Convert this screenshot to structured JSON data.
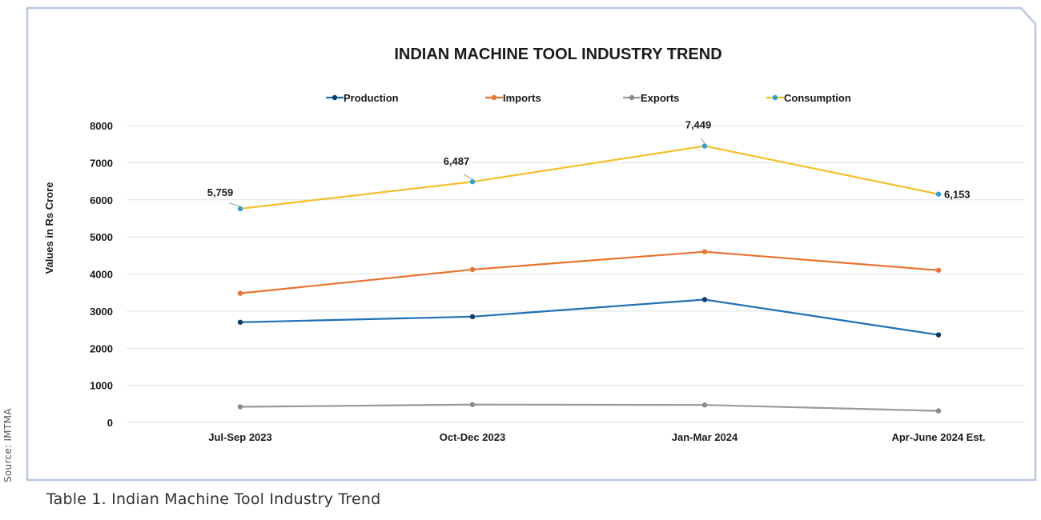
{
  "source_label": "Source: IMTMA",
  "caption": "Table 1. Indian Machine Tool Industry Trend",
  "chart_data": {
    "type": "line",
    "title": "INDIAN MACHINE TOOL INDUSTRY TREND",
    "ylabel": "Values in Rs Crore",
    "xlabel": "",
    "ylim": [
      0,
      8000
    ],
    "yticks": [
      0,
      1000,
      2000,
      3000,
      4000,
      5000,
      6000,
      7000,
      8000
    ],
    "grid": true,
    "legend_position": "top",
    "categories": [
      "Jul-Sep 2023",
      "Oct-Dec 2023",
      "Jan-Mar 2024",
      "Apr-June 2024 Est."
    ],
    "series": [
      {
        "name": "Production",
        "color": "#1f6fb5",
        "marker_color": "#0d3d66",
        "values": [
          2700,
          2850,
          3310,
          2360
        ]
      },
      {
        "name": "Imports",
        "color": "#e8742f",
        "marker_color": "#e8742f",
        "values": [
          3480,
          4120,
          4600,
          4100
        ]
      },
      {
        "name": "Exports",
        "color": "#9a9a9a",
        "marker_color": "#8a8a8a",
        "values": [
          420,
          480,
          470,
          310
        ]
      },
      {
        "name": "Consumption",
        "color": "#f6be27",
        "marker_color": "#2aa3d8",
        "values": [
          5759,
          6487,
          7449,
          6153
        ],
        "data_labels": [
          "5,759",
          "6,487",
          "7,449",
          "6,153"
        ]
      }
    ]
  }
}
